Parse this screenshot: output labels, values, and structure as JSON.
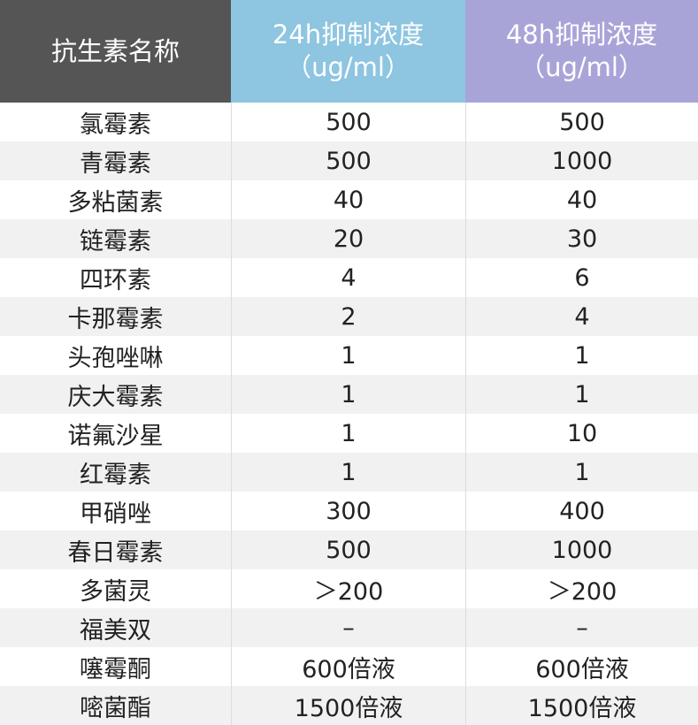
{
  "table": {
    "headers": [
      {
        "title": "抗生素名称",
        "unit": ""
      },
      {
        "title": "24h抑制浓度",
        "unit": "（ug/ml）"
      },
      {
        "title": "48h抑制浓度",
        "unit": "（ug/ml）"
      }
    ],
    "rows": [
      [
        "氯霉素",
        "500",
        "500"
      ],
      [
        "青霉素",
        "500",
        "1000"
      ],
      [
        "多粘菌素",
        "40",
        "40"
      ],
      [
        "链霉素",
        "20",
        "30"
      ],
      [
        "四环素",
        "4",
        "6"
      ],
      [
        "卡那霉素",
        "2",
        "4"
      ],
      [
        "头孢唑啉",
        "1",
        "1"
      ],
      [
        "庆大霉素",
        "1",
        "1"
      ],
      [
        "诺氟沙星",
        "1",
        "10"
      ],
      [
        "红霉素",
        "1",
        "1"
      ],
      [
        "甲硝唑",
        "300",
        "400"
      ],
      [
        "春日霉素",
        "500",
        "1000"
      ],
      [
        "多菌灵",
        "＞200",
        "＞200"
      ],
      [
        "福美双",
        "–",
        "–"
      ],
      [
        "噻霉酮",
        "600倍液",
        "600倍液"
      ],
      [
        "嘧菌酯",
        "1500倍液",
        "1500倍液"
      ]
    ]
  },
  "colors": {
    "header_name": "#555555",
    "header_24h": "#8ec5e0",
    "header_48h": "#a9a4d8",
    "row_stripe": "#f1f1f1"
  }
}
